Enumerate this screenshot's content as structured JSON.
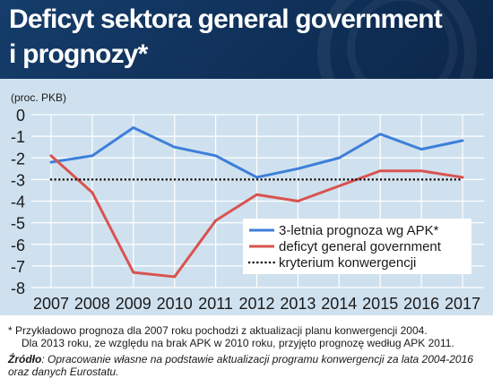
{
  "header": {
    "title_line1": "Deficyt sektora general government",
    "title_line2": "i prognozy*"
  },
  "chart_data": {
    "type": "line",
    "ylabel": "(proc. PKB)",
    "ylim": [
      -8,
      0
    ],
    "yticks": [
      0,
      -1,
      -2,
      -3,
      -4,
      -5,
      -6,
      -7,
      -8
    ],
    "ytick_labels": [
      "0",
      "-1",
      "-2",
      "-3",
      "-4",
      "-5",
      "-6",
      "-7",
      "-8"
    ],
    "categories": [
      "2007",
      "2008",
      "2009",
      "2010",
      "2011",
      "2012",
      "2013",
      "2014",
      "2015",
      "2016",
      "2017"
    ],
    "grid": true,
    "legend_position": "bottom-right",
    "series": [
      {
        "name": "3-letnia prognoza wg APK*",
        "color": "#3d7fd9",
        "style": "solid",
        "values": [
          -2.2,
          -1.9,
          -0.6,
          -1.5,
          -1.9,
          -2.9,
          -2.5,
          -2.0,
          -0.9,
          -1.6,
          -1.2
        ]
      },
      {
        "name": "deficyt general government",
        "color": "#d9534f",
        "style": "solid",
        "values": [
          -1.9,
          -3.6,
          -7.3,
          -7.5,
          -4.9,
          -3.7,
          -4.0,
          -3.3,
          -2.6,
          -2.6,
          -2.9
        ]
      },
      {
        "name": "kryterium konwergencji",
        "color": "#111111",
        "style": "dotted",
        "values": [
          -3,
          -3,
          -3,
          -3,
          -3,
          -3,
          -3,
          -3,
          -3,
          -3,
          -3
        ]
      }
    ]
  },
  "footnotes": {
    "note_line1": "* Przykładowo prognoza dla 2007 roku pochodzi z aktualizacji planu konwergencji 2004.",
    "note_line2": "Dla 2013 roku, ze względu na brak APK w 2010 roku, przyjęto prognozę według APK 2011.",
    "source_label": "Źródło",
    "source_line1": ": Opracowanie własne na podstawie aktualizacji programu konwergencji za lata 2004-2016",
    "source_line2": "oraz danych Eurostatu."
  }
}
